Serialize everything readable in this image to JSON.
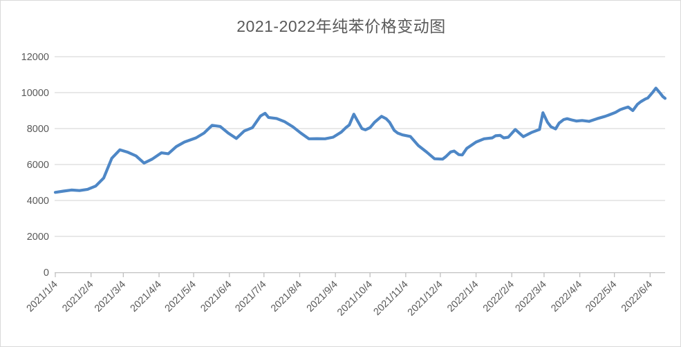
{
  "chart_title": "2021-2022年纯苯价格变动图",
  "colors": {
    "line": "#4E87C6",
    "gridline": "#D9D9D9",
    "axis": "#BFBFBF",
    "tick_text": "#595959",
    "title_text": "#595959",
    "chart_border": "#D9D9D9",
    "background": "#FFFFFF"
  },
  "chart_data": {
    "type": "line",
    "title": "2021-2022年纯苯价格变动图",
    "xlabel": "",
    "ylabel": "",
    "ylim": [
      0,
      12000
    ],
    "y_ticks": [
      0,
      2000,
      4000,
      6000,
      8000,
      10000,
      12000
    ],
    "y_tick_labels": [
      "0",
      "2000",
      "4000",
      "6000",
      "8000",
      "10000",
      "12000"
    ],
    "x_tick_labels": [
      "2021/1/4",
      "2021/2/4",
      "2021/3/4",
      "2021/4/4",
      "2021/5/4",
      "2021/6/4",
      "2021/7/4",
      "2021/8/4",
      "2021/9/4",
      "2021/10/4",
      "2021/11/4",
      "2021/12/4",
      "2022/1/4",
      "2022/2/4",
      "2022/3/4",
      "2022/4/4",
      "2022/5/4",
      "2022/6/4"
    ],
    "grid": true,
    "legend": false,
    "x_label_rotation": -45,
    "series": [
      {
        "points": [
          [
            "2021/1/4",
            4450
          ],
          [
            "2021/1/11",
            4520
          ],
          [
            "2021/1/18",
            4580
          ],
          [
            "2021/1/25",
            4550
          ],
          [
            "2021/2/1",
            4620
          ],
          [
            "2021/2/8",
            4800
          ],
          [
            "2021/2/15",
            5250
          ],
          [
            "2021/2/22",
            6350
          ],
          [
            "2021/3/1",
            6820
          ],
          [
            "2021/3/8",
            6680
          ],
          [
            "2021/3/15",
            6480
          ],
          [
            "2021/3/22",
            6080
          ],
          [
            "2021/3/29",
            6300
          ],
          [
            "2021/4/6",
            6650
          ],
          [
            "2021/4/12",
            6600
          ],
          [
            "2021/4/19",
            7000
          ],
          [
            "2021/4/26",
            7250
          ],
          [
            "2021/5/6",
            7480
          ],
          [
            "2021/5/13",
            7750
          ],
          [
            "2021/5/20",
            8180
          ],
          [
            "2021/5/27",
            8120
          ],
          [
            "2021/6/3",
            7750
          ],
          [
            "2021/6/10",
            7450
          ],
          [
            "2021/6/17",
            7870
          ],
          [
            "2021/6/24",
            8050
          ],
          [
            "2021/7/1",
            8700
          ],
          [
            "2021/7/5",
            8850
          ],
          [
            "2021/7/8",
            8620
          ],
          [
            "2021/7/15",
            8560
          ],
          [
            "2021/7/22",
            8380
          ],
          [
            "2021/7/29",
            8100
          ],
          [
            "2021/8/5",
            7750
          ],
          [
            "2021/8/12",
            7430
          ],
          [
            "2021/8/19",
            7440
          ],
          [
            "2021/8/26",
            7430
          ],
          [
            "2021/9/2",
            7520
          ],
          [
            "2021/9/9",
            7800
          ],
          [
            "2021/9/13",
            8050
          ],
          [
            "2021/9/16",
            8200
          ],
          [
            "2021/9/20",
            8800
          ],
          [
            "2021/9/23",
            8450
          ],
          [
            "2021/9/27",
            8000
          ],
          [
            "2021/9/30",
            7930
          ],
          [
            "2021/10/4",
            8050
          ],
          [
            "2021/10/8",
            8350
          ],
          [
            "2021/10/14",
            8680
          ],
          [
            "2021/10/18",
            8550
          ],
          [
            "2021/10/21",
            8350
          ],
          [
            "2021/10/25",
            7900
          ],
          [
            "2021/10/28",
            7750
          ],
          [
            "2021/11/1",
            7650
          ],
          [
            "2021/11/8",
            7560
          ],
          [
            "2021/11/15",
            7050
          ],
          [
            "2021/11/22",
            6700
          ],
          [
            "2021/11/29",
            6320
          ],
          [
            "2021/12/6",
            6300
          ],
          [
            "2021/12/9",
            6450
          ],
          [
            "2021/12/13",
            6700
          ],
          [
            "2021/12/16",
            6750
          ],
          [
            "2021/12/20",
            6550
          ],
          [
            "2021/12/23",
            6530
          ],
          [
            "2021/12/27",
            6900
          ],
          [
            "2022/1/4",
            7250
          ],
          [
            "2022/1/11",
            7430
          ],
          [
            "2022/1/18",
            7480
          ],
          [
            "2022/1/21",
            7600
          ],
          [
            "2022/1/25",
            7620
          ],
          [
            "2022/1/28",
            7480
          ],
          [
            "2022/2/1",
            7520
          ],
          [
            "2022/2/7",
            7950
          ],
          [
            "2022/2/14",
            7550
          ],
          [
            "2022/2/21",
            7780
          ],
          [
            "2022/2/28",
            7950
          ],
          [
            "2022/3/3",
            8880
          ],
          [
            "2022/3/7",
            8350
          ],
          [
            "2022/3/10",
            8100
          ],
          [
            "2022/3/14",
            7980
          ],
          [
            "2022/3/17",
            8300
          ],
          [
            "2022/3/21",
            8500
          ],
          [
            "2022/3/24",
            8550
          ],
          [
            "2022/3/28",
            8480
          ],
          [
            "2022/4/1",
            8420
          ],
          [
            "2022/4/6",
            8450
          ],
          [
            "2022/4/12",
            8400
          ],
          [
            "2022/4/19",
            8550
          ],
          [
            "2022/4/26",
            8680
          ],
          [
            "2022/4/29",
            8750
          ],
          [
            "2022/5/5",
            8900
          ],
          [
            "2022/5/9",
            9050
          ],
          [
            "2022/5/12",
            9120
          ],
          [
            "2022/5/16",
            9200
          ],
          [
            "2022/5/20",
            9000
          ],
          [
            "2022/5/24",
            9350
          ],
          [
            "2022/5/27",
            9500
          ],
          [
            "2022/5/31",
            9650
          ],
          [
            "2022/6/2",
            9700
          ],
          [
            "2022/6/6",
            10000
          ],
          [
            "2022/6/9",
            10250
          ],
          [
            "2022/6/13",
            9950
          ],
          [
            "2022/6/15",
            9780
          ],
          [
            "2022/6/17",
            9680
          ]
        ]
      }
    ]
  }
}
